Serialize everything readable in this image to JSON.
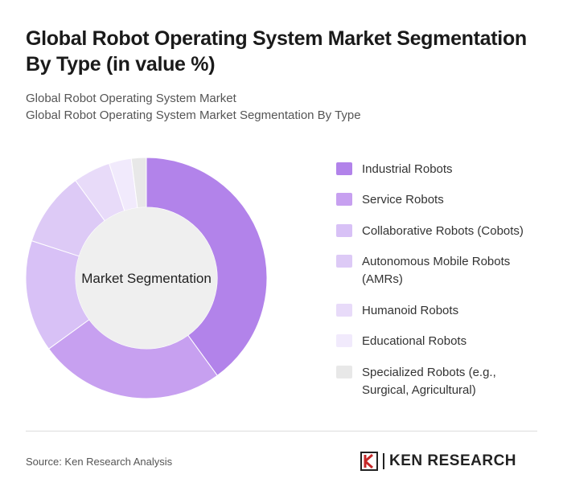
{
  "chart_data": {
    "type": "pie",
    "title": "Global Robot Operating System Market Segmentation By Type (in value %)",
    "subtitle": [
      "Global Robot Operating System Market",
      "Global Robot Operating System Market Segmentation By Type"
    ],
    "center_label": "Market Segmentation",
    "categories": [
      "Industrial Robots",
      "Service Robots",
      "Collaborative Robots (Cobots)",
      "Autonomous Mobile Robots (AMRs)",
      "Humanoid Robots",
      "Educational Robots",
      "Specialized Robots (e.g., Surgical, Agricultural)"
    ],
    "values": [
      40,
      25,
      15,
      10,
      5,
      3,
      2
    ],
    "colors": [
      "#b283ea",
      "#c7a0f0",
      "#d8c1f6",
      "#ddcaf6",
      "#e8dbf9",
      "#f1eafc",
      "#e8e8e8"
    ]
  },
  "footer": {
    "source": "Source: Ken Research Analysis",
    "logo": "KEN RESEARCH"
  }
}
